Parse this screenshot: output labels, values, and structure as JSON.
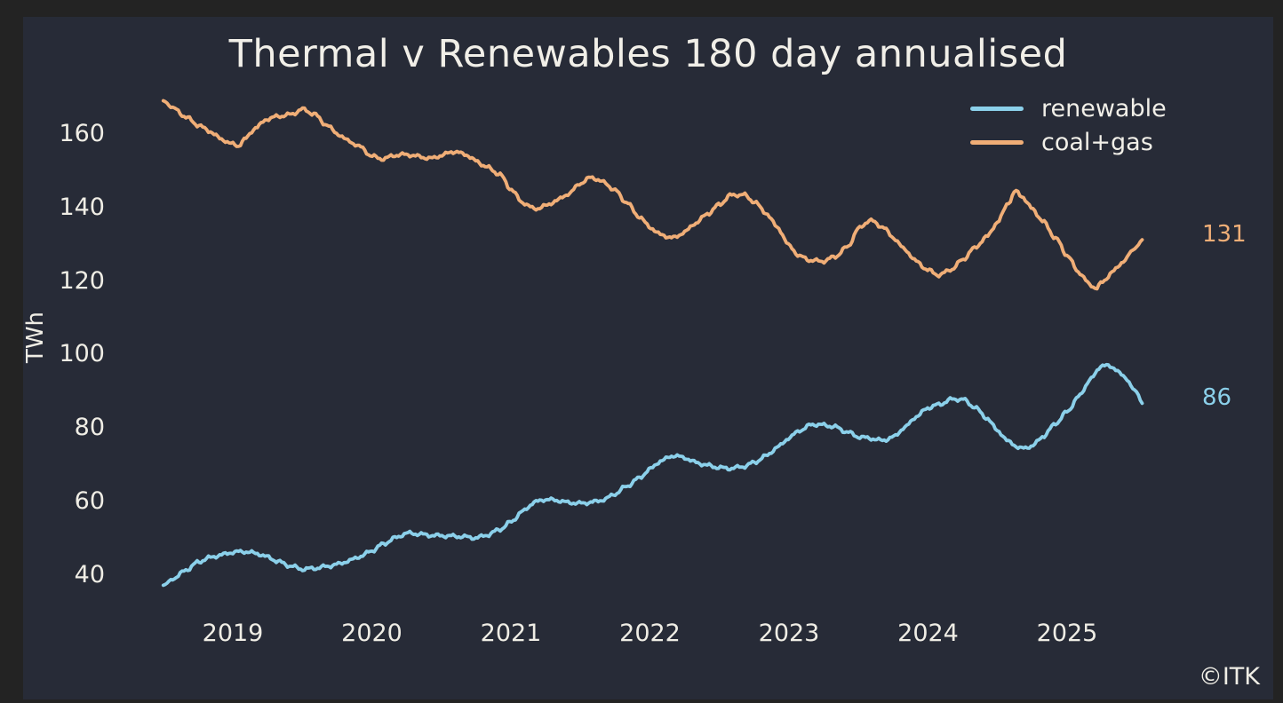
{
  "watermark": "©ITK",
  "chart_data": {
    "type": "line",
    "title": "Thermal v Renewables 180 day annualised",
    "xlabel": "",
    "ylabel": "TWh",
    "x_ticks": [
      2019,
      2020,
      2021,
      2022,
      2023,
      2024,
      2025
    ],
    "y_ticks": [
      40,
      60,
      80,
      100,
      120,
      140,
      160
    ],
    "xlim": [
      2018.35,
      2025.9
    ],
    "ylim": [
      32,
      174
    ],
    "grid": false,
    "legend_position": "upper right",
    "background_color": "#272B37",
    "outer_background_color": "#232323",
    "text_color": "#EFEDE5",
    "series": [
      {
        "name": "renewable",
        "color": "#8BD0EA",
        "end_label": "86",
        "points": [
          [
            2018.5,
            37.0
          ],
          [
            2018.58,
            39.0
          ],
          [
            2018.67,
            41.3
          ],
          [
            2018.75,
            43.3
          ],
          [
            2018.83,
            44.5
          ],
          [
            2018.92,
            45.3
          ],
          [
            2019.0,
            46.0
          ],
          [
            2019.08,
            46.2
          ],
          [
            2019.17,
            45.7
          ],
          [
            2019.25,
            44.7
          ],
          [
            2019.33,
            43.4
          ],
          [
            2019.42,
            42.2
          ],
          [
            2019.5,
            41.4
          ],
          [
            2019.58,
            41.6
          ],
          [
            2019.67,
            42.1
          ],
          [
            2019.75,
            42.7
          ],
          [
            2019.83,
            43.6
          ],
          [
            2019.92,
            44.9
          ],
          [
            2020.0,
            46.4
          ],
          [
            2020.08,
            48.2
          ],
          [
            2020.17,
            49.9
          ],
          [
            2020.25,
            51.2
          ],
          [
            2020.33,
            51.0
          ],
          [
            2020.42,
            50.6
          ],
          [
            2020.5,
            50.5
          ],
          [
            2020.58,
            50.4
          ],
          [
            2020.67,
            50.2
          ],
          [
            2020.75,
            49.9
          ],
          [
            2020.83,
            50.7
          ],
          [
            2020.92,
            52.2
          ],
          [
            2021.0,
            54.2
          ],
          [
            2021.08,
            57.0
          ],
          [
            2021.17,
            59.6
          ],
          [
            2021.25,
            60.4
          ],
          [
            2021.33,
            60.1
          ],
          [
            2021.42,
            59.5
          ],
          [
            2021.5,
            59.3
          ],
          [
            2021.58,
            59.6
          ],
          [
            2021.67,
            60.3
          ],
          [
            2021.75,
            61.9
          ],
          [
            2021.83,
            63.9
          ],
          [
            2021.92,
            66.1
          ],
          [
            2022.0,
            68.6
          ],
          [
            2022.08,
            70.9
          ],
          [
            2022.17,
            72.3
          ],
          [
            2022.25,
            71.7
          ],
          [
            2022.33,
            70.4
          ],
          [
            2022.42,
            69.6
          ],
          [
            2022.5,
            69.0
          ],
          [
            2022.58,
            68.8
          ],
          [
            2022.67,
            69.3
          ],
          [
            2022.75,
            70.4
          ],
          [
            2022.83,
            72.1
          ],
          [
            2022.92,
            74.6
          ],
          [
            2023.0,
            77.1
          ],
          [
            2023.08,
            79.2
          ],
          [
            2023.17,
            80.8
          ],
          [
            2023.25,
            80.6
          ],
          [
            2023.33,
            80.1
          ],
          [
            2023.42,
            78.7
          ],
          [
            2023.5,
            77.4
          ],
          [
            2023.58,
            77.0
          ],
          [
            2023.67,
            76.4
          ],
          [
            2023.75,
            77.3
          ],
          [
            2023.83,
            79.9
          ],
          [
            2023.92,
            83.0
          ],
          [
            2024.0,
            85.3
          ],
          [
            2024.08,
            86.2
          ],
          [
            2024.17,
            87.6
          ],
          [
            2024.25,
            87.6
          ],
          [
            2024.33,
            85.6
          ],
          [
            2024.42,
            82.6
          ],
          [
            2024.5,
            79.1
          ],
          [
            2024.58,
            76.0
          ],
          [
            2024.67,
            74.2
          ],
          [
            2024.75,
            74.9
          ],
          [
            2024.83,
            77.6
          ],
          [
            2024.92,
            81.1
          ],
          [
            2025.0,
            84.2
          ],
          [
            2025.08,
            88.2
          ],
          [
            2025.17,
            93.1
          ],
          [
            2025.25,
            96.9
          ],
          [
            2025.33,
            96.3
          ],
          [
            2025.42,
            93.4
          ],
          [
            2025.5,
            89.5
          ],
          [
            2025.54,
            86.5
          ]
        ]
      },
      {
        "name": "coal+gas",
        "color": "#F0AE77",
        "end_label": "131",
        "points": [
          [
            2018.5,
            168.8
          ],
          [
            2018.58,
            166.6
          ],
          [
            2018.67,
            164.2
          ],
          [
            2018.75,
            162.2
          ],
          [
            2018.83,
            160.6
          ],
          [
            2018.92,
            158.3
          ],
          [
            2019.0,
            157.0
          ],
          [
            2019.04,
            156.5
          ],
          [
            2019.08,
            158.2
          ],
          [
            2019.17,
            161.6
          ],
          [
            2019.25,
            163.9
          ],
          [
            2019.33,
            164.6
          ],
          [
            2019.42,
            165.1
          ],
          [
            2019.5,
            166.5
          ],
          [
            2019.58,
            165.3
          ],
          [
            2019.67,
            162.4
          ],
          [
            2019.75,
            159.9
          ],
          [
            2019.83,
            157.9
          ],
          [
            2019.92,
            156.2
          ],
          [
            2020.0,
            153.7
          ],
          [
            2020.08,
            153.0
          ],
          [
            2020.17,
            154.0
          ],
          [
            2020.25,
            154.2
          ],
          [
            2020.33,
            153.7
          ],
          [
            2020.42,
            153.1
          ],
          [
            2020.5,
            153.9
          ],
          [
            2020.58,
            155.0
          ],
          [
            2020.67,
            154.3
          ],
          [
            2020.75,
            152.4
          ],
          [
            2020.83,
            150.7
          ],
          [
            2020.92,
            148.8
          ],
          [
            2021.0,
            144.8
          ],
          [
            2021.08,
            141.2
          ],
          [
            2021.17,
            139.4
          ],
          [
            2021.25,
            140.2
          ],
          [
            2021.33,
            141.7
          ],
          [
            2021.42,
            143.6
          ],
          [
            2021.5,
            146.4
          ],
          [
            2021.58,
            148.0
          ],
          [
            2021.67,
            146.6
          ],
          [
            2021.75,
            144.4
          ],
          [
            2021.83,
            141.2
          ],
          [
            2021.92,
            137.4
          ],
          [
            2022.0,
            134.4
          ],
          [
            2022.08,
            132.3
          ],
          [
            2022.17,
            131.5
          ],
          [
            2022.25,
            133.1
          ],
          [
            2022.33,
            135.6
          ],
          [
            2022.42,
            138.2
          ],
          [
            2022.5,
            140.6
          ],
          [
            2022.58,
            143.1
          ],
          [
            2022.67,
            143.3
          ],
          [
            2022.75,
            141.4
          ],
          [
            2022.83,
            138.4
          ],
          [
            2022.92,
            134.3
          ],
          [
            2023.0,
            129.4
          ],
          [
            2023.08,
            126.4
          ],
          [
            2023.17,
            125.3
          ],
          [
            2023.25,
            125.2
          ],
          [
            2023.33,
            126.4
          ],
          [
            2023.42,
            129.0
          ],
          [
            2023.5,
            134.0
          ],
          [
            2023.58,
            136.3
          ],
          [
            2023.67,
            134.6
          ],
          [
            2023.75,
            131.6
          ],
          [
            2023.83,
            128.4
          ],
          [
            2023.92,
            125.0
          ],
          [
            2024.0,
            122.7
          ],
          [
            2024.08,
            121.4
          ],
          [
            2024.17,
            123.0
          ],
          [
            2024.25,
            125.6
          ],
          [
            2024.33,
            128.6
          ],
          [
            2024.42,
            131.7
          ],
          [
            2024.5,
            135.8
          ],
          [
            2024.58,
            141.2
          ],
          [
            2024.63,
            144.2
          ],
          [
            2024.67,
            143.0
          ],
          [
            2024.75,
            139.4
          ],
          [
            2024.83,
            135.8
          ],
          [
            2024.92,
            131.3
          ],
          [
            2025.0,
            126.8
          ],
          [
            2025.08,
            122.3
          ],
          [
            2025.17,
            118.6
          ],
          [
            2025.21,
            117.9
          ],
          [
            2025.25,
            119.3
          ],
          [
            2025.33,
            122.4
          ],
          [
            2025.42,
            125.6
          ],
          [
            2025.46,
            127.6
          ],
          [
            2025.5,
            129.2
          ],
          [
            2025.54,
            131.0
          ]
        ]
      }
    ]
  }
}
